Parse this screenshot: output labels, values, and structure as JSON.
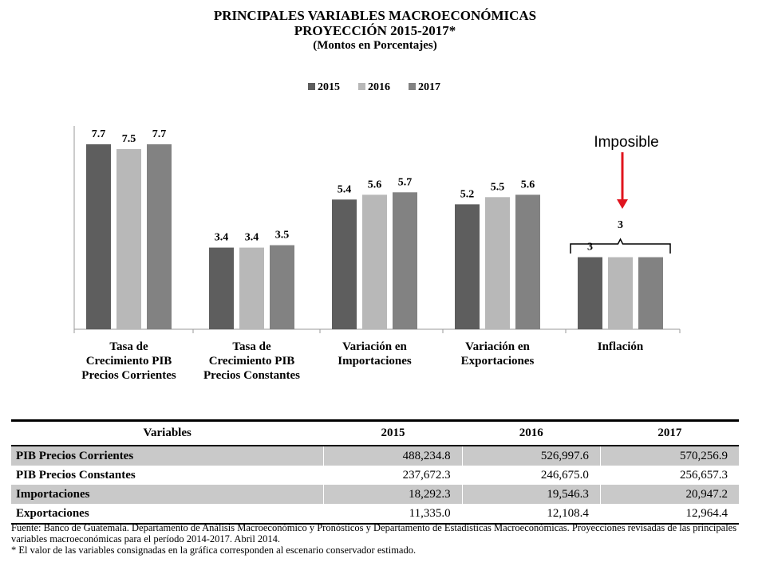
{
  "header": {
    "title": "PRINCIPALES VARIABLES MACROECONÓMICAS",
    "subtitle": "PROYECCIÓN 2015-2017*",
    "units": "(Montos en Porcentajes)"
  },
  "chart_data": {
    "type": "bar",
    "categories": [
      [
        "Tasa de",
        "Crecimiento PIB",
        "Precios Corrientes"
      ],
      [
        "Tasa de",
        "Crecimiento PIB",
        "Precios Constantes"
      ],
      [
        "Variación en",
        "Importaciones"
      ],
      [
        "Variación en",
        "Exportaciones"
      ],
      [
        "Inflación"
      ]
    ],
    "series": [
      {
        "name": "2015",
        "values": [
          7.7,
          3.4,
          5.4,
          5.2,
          3
        ],
        "color": "#5e5e5e"
      },
      {
        "name": "2016",
        "values": [
          7.5,
          3.4,
          5.6,
          5.5,
          3
        ],
        "color": "#b8b8b8"
      },
      {
        "name": "2017",
        "values": [
          7.7,
          3.5,
          5.7,
          5.6,
          3
        ],
        "color": "#828282"
      }
    ],
    "value_labels": [
      [
        "7.7",
        "7.5",
        "7.7"
      ],
      [
        "3.4",
        "3.4",
        "3.5"
      ],
      [
        "5.4",
        "5.6",
        "5.7"
      ],
      [
        "5.2",
        "5.5",
        "5.6"
      ],
      [
        "3"
      ]
    ],
    "ylim": [
      0,
      8.5
    ],
    "legend_position": "top-center",
    "grid": false,
    "annotation": {
      "text": "Imposible",
      "arrow_color": "#e0141e",
      "target_category": "Inflación"
    }
  },
  "table": {
    "headers": [
      "Variables",
      "2015",
      "2016",
      "2017"
    ],
    "rows": [
      {
        "name": "PIB Precios Corrientes",
        "values": [
          "488,234.8",
          "526,997.6",
          "570,256.9"
        ]
      },
      {
        "name": "PIB Precios Constantes",
        "values": [
          "237,672.3",
          "246,675.0",
          "256,657.3"
        ]
      },
      {
        "name": "Importaciones",
        "values": [
          "18,292.3",
          "19,546.3",
          "20,947.2"
        ]
      },
      {
        "name": "Exportaciones",
        "values": [
          "11,335.0",
          "12,108.4",
          "12,964.4"
        ]
      }
    ]
  },
  "footer": {
    "line1": "Fuente: Banco de Guatemala. Departamento de Análisis Macroeconómico y Pronósticos y Departamento de Estadísticas Macroeconómicas. Proyecciones revisadas de las principales variables macroeconómicas para el período 2014-2017. Abril 2014.",
    "line2": "* El valor de las variables consignadas en la gráfica corresponden al escenario conservador estimado."
  }
}
